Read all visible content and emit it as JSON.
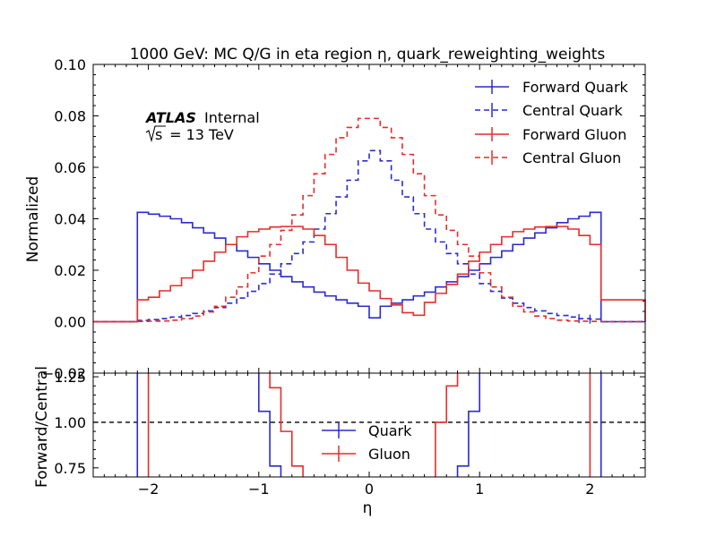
{
  "chart_data": [
    {
      "type": "step",
      "panel": "main",
      "title": "1000 GeV: MC Q/G in eta region η, quark_reweighting_weights",
      "xlabel": "",
      "ylabel": "Normalized",
      "xlim": [
        -2.5,
        2.5
      ],
      "ylim": [
        -0.02,
        0.1
      ],
      "yticks": [
        "−0.02",
        "0.00",
        "0.02",
        "0.04",
        "0.06",
        "0.08",
        "0.10"
      ],
      "annotation": {
        "experiment": "ATLAS",
        "status": "Internal",
        "energy_prefix": "s",
        "energy_suffix": " = 13 TeV"
      },
      "legend_position": "upper right",
      "bin_edges": [
        -2.5,
        -2.1,
        -2.0,
        -1.9,
        -1.8,
        -1.7,
        -1.6,
        -1.5,
        -1.4,
        -1.3,
        -1.2,
        -1.1,
        -1.0,
        -0.9,
        -0.8,
        -0.7,
        -0.6,
        -0.5,
        -0.4,
        -0.3,
        -0.2,
        -0.1,
        0.0,
        0.1,
        0.2,
        0.3,
        0.4,
        0.5,
        0.6,
        0.7,
        0.8,
        0.9,
        1.0,
        1.1,
        1.2,
        1.3,
        1.4,
        1.5,
        1.6,
        1.7,
        1.8,
        1.9,
        2.0,
        2.1,
        2.5
      ],
      "series": [
        {
          "name": "Forward Quark",
          "color": "#2a2ad4",
          "dashed": false,
          "values": [
            0,
            0.0425,
            0.0418,
            0.041,
            0.04,
            0.0385,
            0.0365,
            0.0345,
            0.0325,
            0.03,
            0.0275,
            0.025,
            0.0225,
            0.02,
            0.0175,
            0.0155,
            0.0135,
            0.0115,
            0.01,
            0.0085,
            0.0072,
            0.006,
            0.0015,
            0.006,
            0.0072,
            0.0085,
            0.01,
            0.0115,
            0.0135,
            0.0155,
            0.0175,
            0.02,
            0.0225,
            0.025,
            0.0275,
            0.03,
            0.0325,
            0.0345,
            0.0365,
            0.0385,
            0.04,
            0.041,
            0.0425,
            0
          ]
        },
        {
          "name": "Central Quark",
          "color": "#2a2ad4",
          "dashed": true,
          "values": [
            0,
            0.0005,
            0.0008,
            0.0012,
            0.0018,
            0.0024,
            0.0032,
            0.0042,
            0.0055,
            0.0072,
            0.0092,
            0.0118,
            0.0148,
            0.0185,
            0.0225,
            0.0265,
            0.031,
            0.036,
            0.042,
            0.0485,
            0.055,
            0.0625,
            0.0665,
            0.0625,
            0.055,
            0.0485,
            0.042,
            0.036,
            0.031,
            0.0265,
            0.0225,
            0.0185,
            0.0148,
            0.0118,
            0.0092,
            0.0072,
            0.0055,
            0.0042,
            0.0032,
            0.0024,
            0.0018,
            0.0012,
            0.001,
            0
          ]
        },
        {
          "name": "Forward Gluon",
          "color": "#e62c2c",
          "dashed": false,
          "values": [
            0,
            0.0085,
            0.0095,
            0.012,
            0.014,
            0.017,
            0.02,
            0.0235,
            0.027,
            0.03,
            0.033,
            0.035,
            0.036,
            0.0368,
            0.037,
            0.037,
            0.036,
            0.0335,
            0.03,
            0.025,
            0.02,
            0.015,
            0.012,
            0.009,
            0.0065,
            0.0035,
            0.0025,
            0.0075,
            0.011,
            0.0145,
            0.0185,
            0.0235,
            0.027,
            0.03,
            0.033,
            0.035,
            0.036,
            0.0368,
            0.037,
            0.037,
            0.036,
            0.0335,
            0.03,
            0.0085,
            0
          ]
        },
        {
          "name": "Central Gluon",
          "color": "#e62c2c",
          "dashed": true,
          "values": [
            0,
            0.0001,
            0.0002,
            0.0003,
            0.0006,
            0.0012,
            0.0022,
            0.0038,
            0.006,
            0.0095,
            0.0135,
            0.019,
            0.0255,
            0.03,
            0.0355,
            0.0415,
            0.049,
            0.0575,
            0.065,
            0.0715,
            0.0755,
            0.079,
            0.079,
            0.0755,
            0.0715,
            0.065,
            0.0575,
            0.049,
            0.0415,
            0.0355,
            0.03,
            0.0255,
            0.019,
            0.0135,
            0.0095,
            0.006,
            0.0038,
            0.0022,
            0.0012,
            0.0006,
            0.0003,
            0.0002,
            0.0001,
            0
          ]
        }
      ]
    },
    {
      "type": "step",
      "panel": "ratio",
      "xlabel": "η",
      "ylabel": "Forward/Central",
      "xlim": [
        -2.5,
        2.5
      ],
      "ylim": [
        0.7,
        1.27
      ],
      "xticks": [
        "−2",
        "−1",
        "0",
        "1",
        "2"
      ],
      "yticks": [
        "0.75",
        "1.00",
        "1.25"
      ],
      "reference_line": 1.0,
      "legend_position": "lower center",
      "series": [
        {
          "name": "Quark",
          "color": "#2a2ad4",
          "segments": [
            {
              "x": [
                -2.1,
                -2.1
              ],
              "y": [
                0.7,
                1.27
              ]
            },
            {
              "x": [
                -1.0,
                -1.0,
                -0.9,
                -0.9,
                -0.8,
                -0.8
              ],
              "y": [
                1.27,
                1.06,
                1.06,
                0.76,
                0.76,
                0.7
              ]
            },
            {
              "x": [
                0.8,
                0.8,
                0.9,
                0.9,
                1.0,
                1.0
              ],
              "y": [
                0.7,
                0.76,
                0.76,
                1.06,
                1.06,
                1.27
              ]
            },
            {
              "x": [
                2.1,
                2.1
              ],
              "y": [
                0.7,
                1.27
              ]
            }
          ]
        },
        {
          "name": "Gluon",
          "color": "#e62c2c",
          "segments": [
            {
              "x": [
                -2.0,
                -2.0
              ],
              "y": [
                0.7,
                1.27
              ]
            },
            {
              "x": [
                -0.9,
                -0.9,
                -0.8,
                -0.8,
                -0.7,
                -0.7,
                -0.6,
                -0.6
              ],
              "y": [
                1.27,
                1.19,
                1.19,
                0.95,
                0.95,
                0.76,
                0.76,
                0.7
              ]
            },
            {
              "x": [
                0.6,
                0.6,
                0.7,
                0.7,
                0.8,
                0.8
              ],
              "y": [
                0.7,
                1.0,
                1.0,
                1.2,
                1.2,
                1.27
              ]
            },
            {
              "x": [
                2.0,
                2.0
              ],
              "y": [
                0.7,
                1.27
              ]
            }
          ]
        }
      ]
    }
  ]
}
